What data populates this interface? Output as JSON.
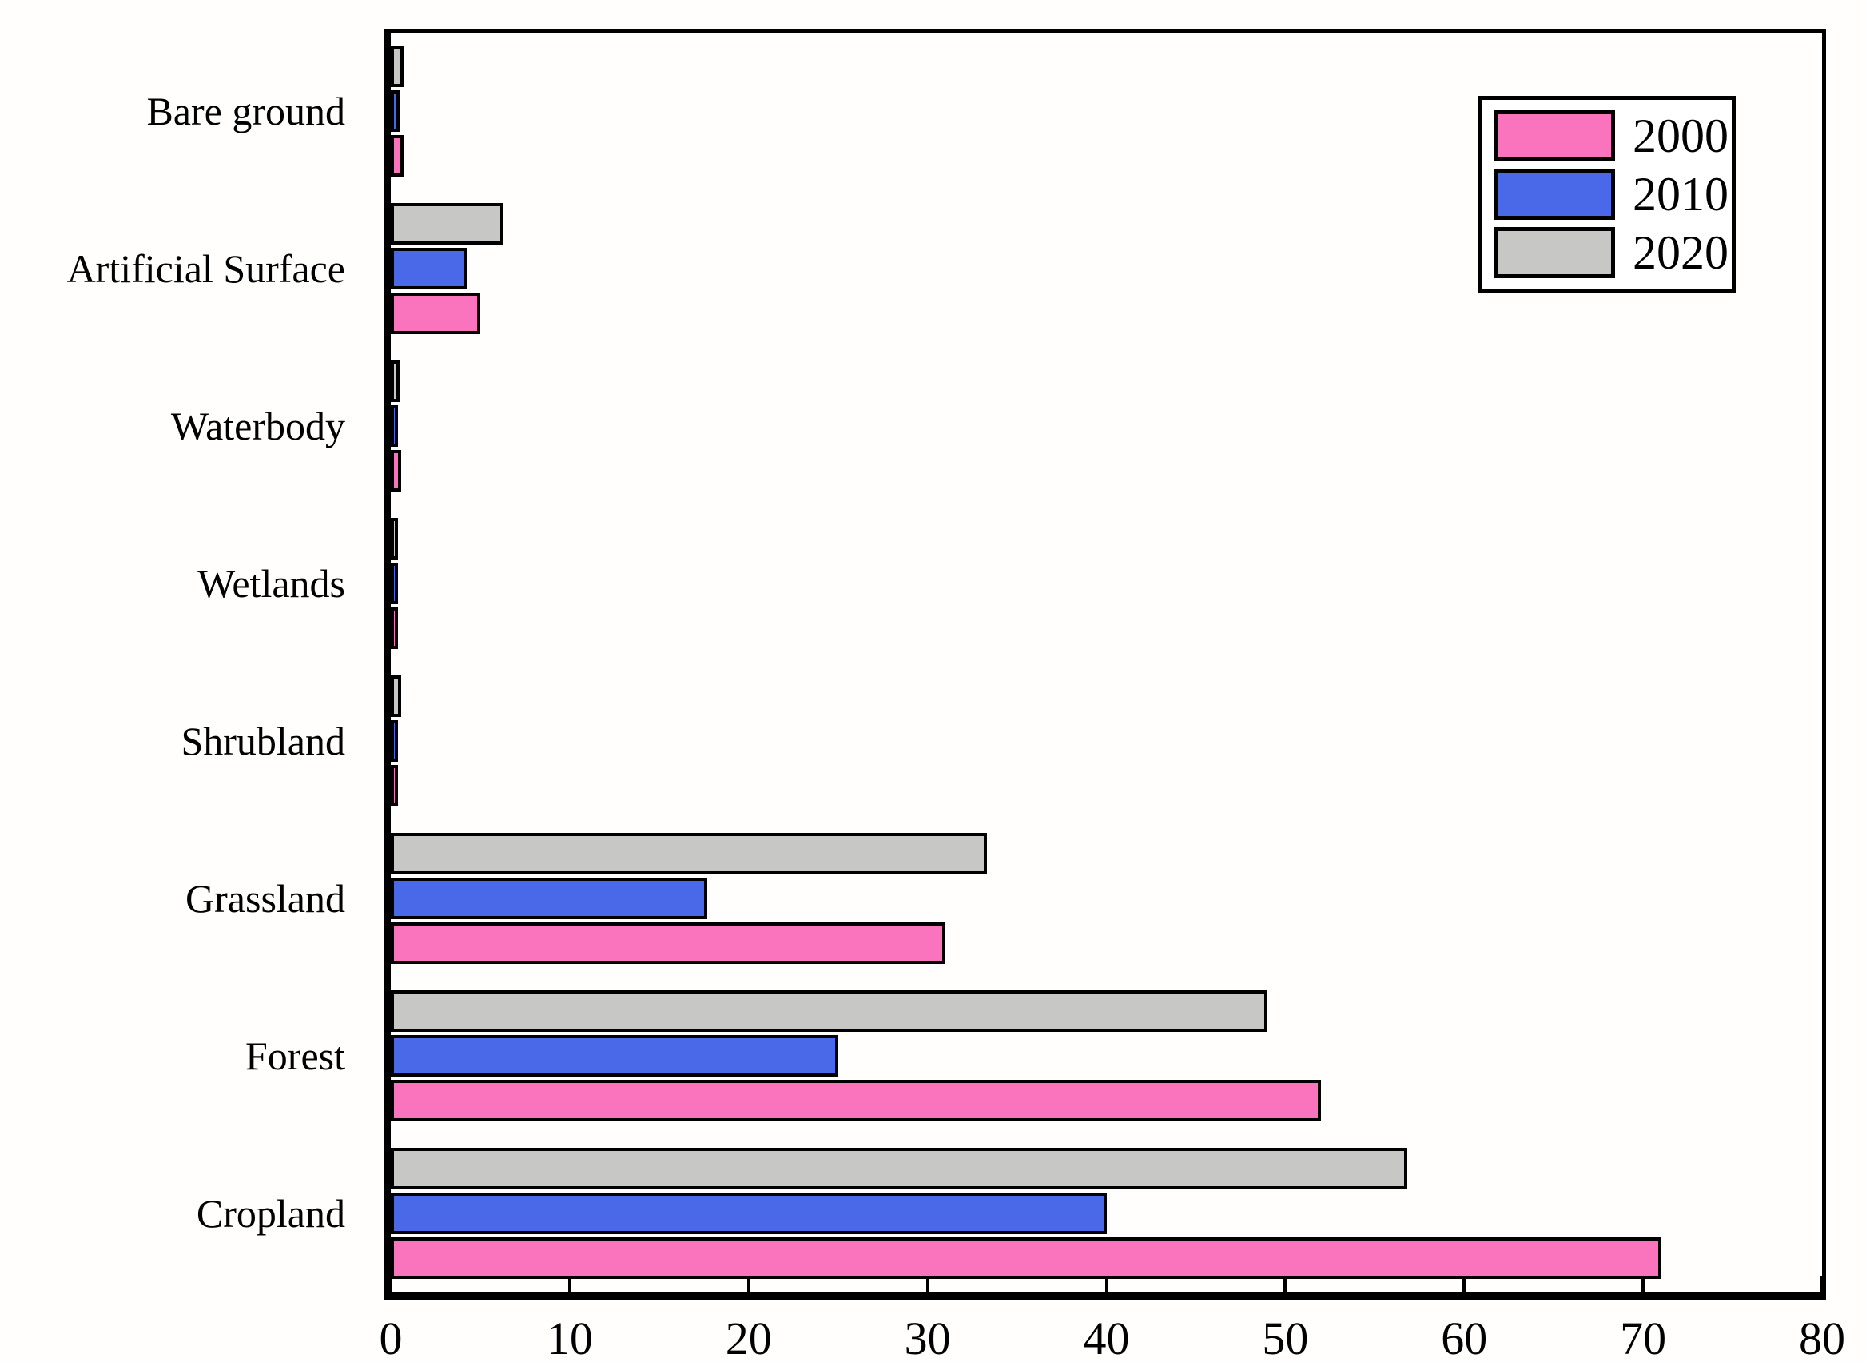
{
  "figure": {
    "background_color": "#FFFEFD",
    "frame_color": "#000000"
  },
  "chart_data": {
    "type": "bar",
    "orientation": "horizontal",
    "title": "",
    "xlabel": "",
    "ylabel": "",
    "grid": false,
    "xlim": [
      0,
      80
    ],
    "x_ticks": [
      0,
      10,
      20,
      30,
      40,
      50,
      60,
      70,
      80
    ],
    "categories": [
      "Bare ground",
      "Artificial Surface",
      "Waterbody",
      "Wetlands",
      "Shrubland",
      "Grassland",
      "Forest",
      "Cropland"
    ],
    "series": [
      {
        "name": "2000",
        "color": "#FA73BD",
        "values": [
          0.7,
          5.0,
          0.6,
          0.1,
          0.3,
          31.0,
          52.0,
          71.0
        ]
      },
      {
        "name": "2010",
        "color": "#4A69E8",
        "values": [
          0.5,
          4.3,
          0.3,
          0.1,
          0.4,
          17.7,
          25.0,
          40.0
        ]
      },
      {
        "name": "2020",
        "color": "#C7C7C5",
        "values": [
          0.7,
          6.3,
          0.5,
          0.1,
          0.6,
          33.3,
          49.0,
          56.8
        ]
      }
    ],
    "series_display_order_top_to_bottom": [
      "2020",
      "2010",
      "2000"
    ],
    "bar_border_color": "#000000",
    "legend": {
      "position": "upper-right",
      "entries": [
        {
          "label": "2000",
          "color": "#FA73BD"
        },
        {
          "label": "2010",
          "color": "#4A69E8"
        },
        {
          "label": "2020",
          "color": "#C7C7C5"
        }
      ]
    }
  }
}
